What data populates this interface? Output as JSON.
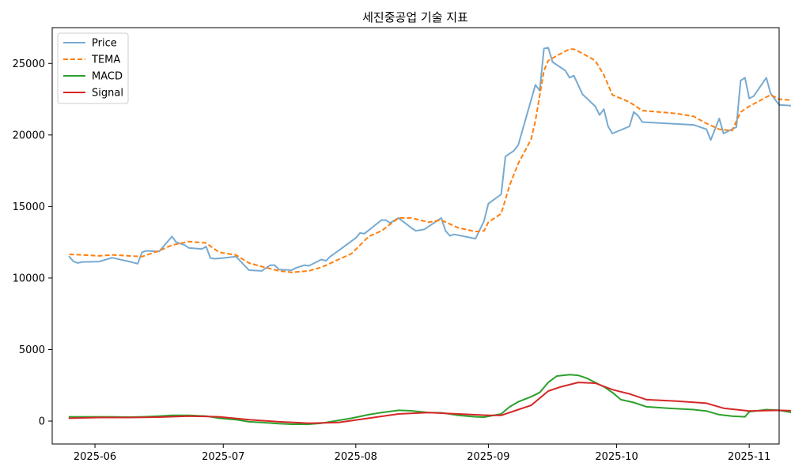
{
  "chart_data": {
    "type": "line",
    "title": "세진중공업 기술 지표",
    "xlabel": "",
    "ylabel": "",
    "x_axis": {
      "type": "date",
      "range": [
        "2025-05-22",
        "2025-11-08"
      ],
      "ticks": [
        {
          "date": "2025-06-01",
          "label": "2025-06"
        },
        {
          "date": "2025-07-01",
          "label": "2025-07"
        },
        {
          "date": "2025-08-01",
          "label": "2025-08"
        },
        {
          "date": "2025-09-01",
          "label": "2025-09"
        },
        {
          "date": "2025-10-01",
          "label": "2025-10"
        },
        {
          "date": "2025-11-01",
          "label": "2025-11"
        }
      ]
    },
    "y_axis": {
      "range": [
        -1600,
        27500
      ],
      "ticks": [
        {
          "value": 0,
          "label": "0"
        },
        {
          "value": 5000,
          "label": "5000"
        },
        {
          "value": 10000,
          "label": "10000"
        },
        {
          "value": 15000,
          "label": "15000"
        },
        {
          "value": 20000,
          "label": "20000"
        },
        {
          "value": 25000,
          "label": "25000"
        }
      ]
    },
    "grid": false,
    "legend": {
      "placement": "top-left"
    },
    "series": [
      {
        "name": "Price",
        "color": "#77aad1",
        "dash": "solid",
        "points": [
          [
            "2025-05-26",
            11500
          ],
          [
            "2025-05-27",
            11150
          ],
          [
            "2025-05-28",
            11050
          ],
          [
            "2025-05-29",
            11120
          ],
          [
            "2025-06-02",
            11150
          ],
          [
            "2025-06-05",
            11420
          ],
          [
            "2025-06-09",
            11150
          ],
          [
            "2025-06-11",
            11000
          ],
          [
            "2025-06-12",
            11800
          ],
          [
            "2025-06-13",
            11900
          ],
          [
            "2025-06-16",
            11850
          ],
          [
            "2025-06-19",
            12900
          ],
          [
            "2025-06-20",
            12500
          ],
          [
            "2025-06-22",
            12300
          ],
          [
            "2025-06-23",
            12100
          ],
          [
            "2025-06-26",
            12030
          ],
          [
            "2025-06-27",
            12200
          ],
          [
            "2025-06-28",
            11400
          ],
          [
            "2025-06-29",
            11350
          ],
          [
            "2025-07-01",
            11400
          ],
          [
            "2025-07-04",
            11500
          ],
          [
            "2025-07-07",
            10550
          ],
          [
            "2025-07-10",
            10500
          ],
          [
            "2025-07-12",
            10900
          ],
          [
            "2025-07-13",
            10900
          ],
          [
            "2025-07-14",
            10600
          ],
          [
            "2025-07-17",
            10550
          ],
          [
            "2025-07-18",
            10700
          ],
          [
            "2025-07-20",
            10900
          ],
          [
            "2025-07-21",
            10850
          ],
          [
            "2025-07-24",
            11300
          ],
          [
            "2025-07-25",
            11200
          ],
          [
            "2025-07-26",
            11500
          ],
          [
            "2025-07-27",
            11700
          ],
          [
            "2025-08-01",
            12800
          ],
          [
            "2025-08-02",
            13150
          ],
          [
            "2025-08-03",
            13100
          ],
          [
            "2025-08-07",
            14050
          ],
          [
            "2025-08-08",
            14050
          ],
          [
            "2025-08-09",
            13850
          ],
          [
            "2025-08-11",
            14200
          ],
          [
            "2025-08-14",
            13500
          ],
          [
            "2025-08-15",
            13300
          ],
          [
            "2025-08-17",
            13400
          ],
          [
            "2025-08-21",
            14200
          ],
          [
            "2025-08-22",
            13300
          ],
          [
            "2025-08-23",
            12950
          ],
          [
            "2025-08-24",
            13050
          ],
          [
            "2025-08-29",
            12750
          ],
          [
            "2025-08-31",
            14000
          ],
          [
            "2025-09-01",
            15200
          ],
          [
            "2025-09-04",
            15850
          ],
          [
            "2025-09-05",
            18500
          ],
          [
            "2025-09-07",
            18900
          ],
          [
            "2025-09-08",
            19300
          ],
          [
            "2025-09-12",
            23500
          ],
          [
            "2025-09-13",
            23100
          ],
          [
            "2025-09-14",
            26050
          ],
          [
            "2025-09-15",
            26100
          ],
          [
            "2025-09-16",
            25100
          ],
          [
            "2025-09-19",
            24500
          ],
          [
            "2025-09-20",
            24000
          ],
          [
            "2025-09-21",
            24150
          ],
          [
            "2025-09-22",
            23500
          ],
          [
            "2025-09-23",
            22850
          ],
          [
            "2025-09-26",
            22000
          ],
          [
            "2025-09-27",
            21400
          ],
          [
            "2025-09-28",
            21800
          ],
          [
            "2025-09-29",
            20600
          ],
          [
            "2025-09-30",
            20100
          ],
          [
            "2025-10-04",
            20600
          ],
          [
            "2025-10-05",
            21600
          ],
          [
            "2025-10-06",
            21350
          ],
          [
            "2025-10-07",
            20900
          ],
          [
            "2025-10-19",
            20700
          ],
          [
            "2025-10-22",
            20400
          ],
          [
            "2025-10-23",
            19650
          ],
          [
            "2025-10-25",
            21150
          ],
          [
            "2025-10-26",
            20100
          ],
          [
            "2025-10-29",
            20550
          ],
          [
            "2025-10-30",
            23800
          ],
          [
            "2025-10-31",
            24000
          ],
          [
            "2025-11-01",
            22550
          ],
          [
            "2025-11-02",
            22700
          ],
          [
            "2025-11-05",
            24000
          ],
          [
            "2025-11-06",
            22900
          ],
          [
            "2025-11-08",
            22100
          ],
          [
            "2025-11-13",
            22000
          ],
          [
            "2025-11-14",
            21250
          ]
        ]
      },
      {
        "name": "TEMA",
        "color": "#ff7f0e",
        "dash": "dashed",
        "points": [
          [
            "2025-05-26",
            11650
          ],
          [
            "2025-05-29",
            11620
          ],
          [
            "2025-06-02",
            11550
          ],
          [
            "2025-06-05",
            11620
          ],
          [
            "2025-06-09",
            11550
          ],
          [
            "2025-06-12",
            11500
          ],
          [
            "2025-06-16",
            11900
          ],
          [
            "2025-06-19",
            12300
          ],
          [
            "2025-06-23",
            12550
          ],
          [
            "2025-06-27",
            12450
          ],
          [
            "2025-06-30",
            11800
          ],
          [
            "2025-07-04",
            11600
          ],
          [
            "2025-07-07",
            11050
          ],
          [
            "2025-07-10",
            10800
          ],
          [
            "2025-07-14",
            10500
          ],
          [
            "2025-07-17",
            10400
          ],
          [
            "2025-07-21",
            10500
          ],
          [
            "2025-07-24",
            10750
          ],
          [
            "2025-07-28",
            11300
          ],
          [
            "2025-07-31",
            11700
          ],
          [
            "2025-08-04",
            12900
          ],
          [
            "2025-08-07",
            13300
          ],
          [
            "2025-08-11",
            14200
          ],
          [
            "2025-08-14",
            14200
          ],
          [
            "2025-08-18",
            13900
          ],
          [
            "2025-08-21",
            14050
          ],
          [
            "2025-08-25",
            13500
          ],
          [
            "2025-08-29",
            13250
          ],
          [
            "2025-08-31",
            13300
          ],
          [
            "2025-09-01",
            13900
          ],
          [
            "2025-09-04",
            14500
          ],
          [
            "2025-09-06",
            16500
          ],
          [
            "2025-09-08",
            18000
          ],
          [
            "2025-09-11",
            19700
          ],
          [
            "2025-09-12",
            21000
          ],
          [
            "2025-09-14",
            24500
          ],
          [
            "2025-09-15",
            25200
          ],
          [
            "2025-09-18",
            25700
          ],
          [
            "2025-09-20",
            26000
          ],
          [
            "2025-09-21",
            26000
          ],
          [
            "2025-09-23",
            25700
          ],
          [
            "2025-09-26",
            25200
          ],
          [
            "2025-09-28",
            24200
          ],
          [
            "2025-09-30",
            22800
          ],
          [
            "2025-10-04",
            22300
          ],
          [
            "2025-10-07",
            21700
          ],
          [
            "2025-10-15",
            21500
          ],
          [
            "2025-10-19",
            21300
          ],
          [
            "2025-10-22",
            20800
          ],
          [
            "2025-10-25",
            20400
          ],
          [
            "2025-10-28",
            20300
          ],
          [
            "2025-10-30",
            21600
          ],
          [
            "2025-11-01",
            22000
          ],
          [
            "2025-11-06",
            22800
          ],
          [
            "2025-11-08",
            22500
          ],
          [
            "2025-11-12",
            22400
          ],
          [
            "2025-11-14",
            22200
          ]
        ]
      },
      {
        "name": "MACD",
        "color": "#2ca02c",
        "dash": "solid",
        "points": [
          [
            "2025-05-26",
            300
          ],
          [
            "2025-05-29",
            300
          ],
          [
            "2025-06-02",
            300
          ],
          [
            "2025-06-05",
            300
          ],
          [
            "2025-06-09",
            280
          ],
          [
            "2025-06-12",
            300
          ],
          [
            "2025-06-16",
            350
          ],
          [
            "2025-06-19",
            400
          ],
          [
            "2025-06-23",
            400
          ],
          [
            "2025-06-27",
            350
          ],
          [
            "2025-06-30",
            200
          ],
          [
            "2025-07-04",
            100
          ],
          [
            "2025-07-07",
            -50
          ],
          [
            "2025-07-10",
            -100
          ],
          [
            "2025-07-14",
            -180
          ],
          [
            "2025-07-17",
            -220
          ],
          [
            "2025-07-21",
            -220
          ],
          [
            "2025-07-24",
            -150
          ],
          [
            "2025-07-28",
            50
          ],
          [
            "2025-07-31",
            200
          ],
          [
            "2025-08-04",
            450
          ],
          [
            "2025-08-07",
            600
          ],
          [
            "2025-08-11",
            750
          ],
          [
            "2025-08-14",
            720
          ],
          [
            "2025-08-18",
            600
          ],
          [
            "2025-08-21",
            580
          ],
          [
            "2025-08-25",
            400
          ],
          [
            "2025-08-29",
            300
          ],
          [
            "2025-08-31",
            280
          ],
          [
            "2025-09-04",
            500
          ],
          [
            "2025-09-06",
            1000
          ],
          [
            "2025-09-08",
            1350
          ],
          [
            "2025-09-11",
            1700
          ],
          [
            "2025-09-13",
            2000
          ],
          [
            "2025-09-15",
            2700
          ],
          [
            "2025-09-17",
            3150
          ],
          [
            "2025-09-20",
            3250
          ],
          [
            "2025-09-22",
            3200
          ],
          [
            "2025-09-24",
            3000
          ],
          [
            "2025-09-26",
            2700
          ],
          [
            "2025-09-28",
            2400
          ],
          [
            "2025-09-30",
            2000
          ],
          [
            "2025-10-02",
            1500
          ],
          [
            "2025-10-05",
            1300
          ],
          [
            "2025-10-08",
            1000
          ],
          [
            "2025-10-13",
            900
          ],
          [
            "2025-10-19",
            800
          ],
          [
            "2025-10-22",
            700
          ],
          [
            "2025-10-25",
            450
          ],
          [
            "2025-10-28",
            350
          ],
          [
            "2025-10-31",
            300
          ],
          [
            "2025-11-01",
            650
          ],
          [
            "2025-11-05",
            800
          ],
          [
            "2025-11-08",
            750
          ],
          [
            "2025-11-11",
            600
          ],
          [
            "2025-11-14",
            450
          ]
        ]
      },
      {
        "name": "Signal",
        "color": "#d62728",
        "dash": "solid",
        "points": [
          [
            "2025-05-26",
            200
          ],
          [
            "2025-06-02",
            250
          ],
          [
            "2025-06-09",
            250
          ],
          [
            "2025-06-16",
            280
          ],
          [
            "2025-06-23",
            350
          ],
          [
            "2025-06-30",
            300
          ],
          [
            "2025-07-07",
            100
          ],
          [
            "2025-07-14",
            -50
          ],
          [
            "2025-07-21",
            -150
          ],
          [
            "2025-07-28",
            -100
          ],
          [
            "2025-08-04",
            200
          ],
          [
            "2025-08-11",
            500
          ],
          [
            "2025-08-18",
            600
          ],
          [
            "2025-08-25",
            500
          ],
          [
            "2025-09-01",
            400
          ],
          [
            "2025-09-04",
            400
          ],
          [
            "2025-09-08",
            800
          ],
          [
            "2025-09-11",
            1100
          ],
          [
            "2025-09-15",
            2100
          ],
          [
            "2025-09-18",
            2400
          ],
          [
            "2025-09-22",
            2700
          ],
          [
            "2025-09-26",
            2650
          ],
          [
            "2025-09-30",
            2200
          ],
          [
            "2025-10-04",
            1900
          ],
          [
            "2025-10-08",
            1500
          ],
          [
            "2025-10-15",
            1400
          ],
          [
            "2025-10-22",
            1250
          ],
          [
            "2025-10-26",
            900
          ],
          [
            "2025-11-01",
            700
          ],
          [
            "2025-11-08",
            750
          ],
          [
            "2025-11-14",
            700
          ]
        ]
      }
    ]
  }
}
